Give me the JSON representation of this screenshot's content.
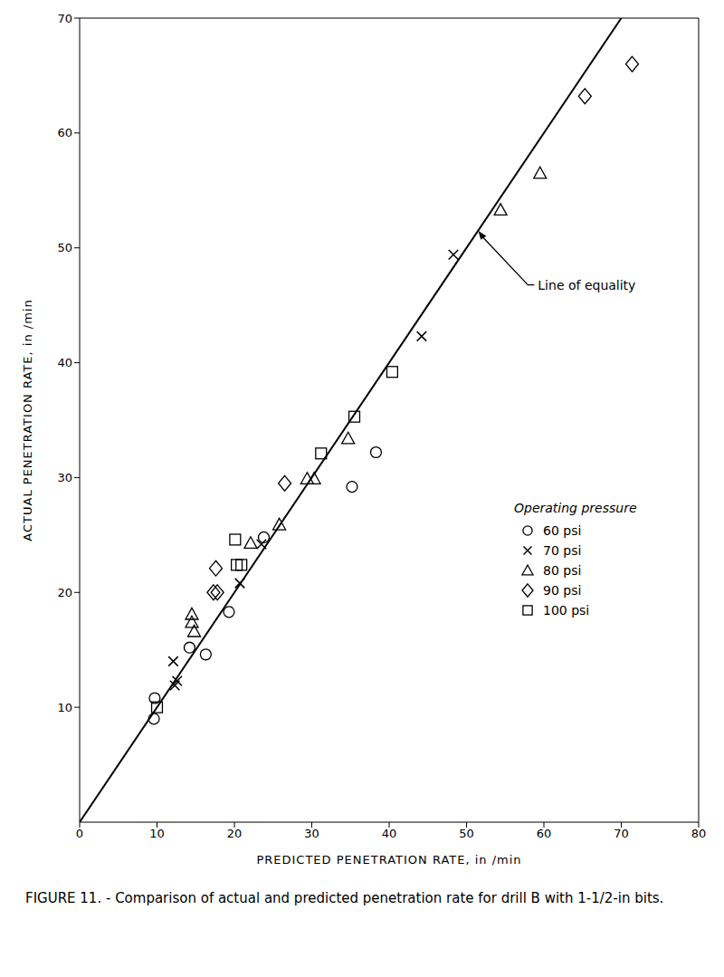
{
  "chart_data": {
    "type": "scatter",
    "title": "FIGURE 11. - Comparison of actual and predicted penetration rate for drill B with 1-1/2-in bits.",
    "x_label": "PREDICTED PENETRATION RATE, in /min",
    "y_label": "ACTUAL PENETRATION RATE, in /min",
    "xlim": [
      0,
      80
    ],
    "xticks": [
      0,
      10,
      20,
      30,
      40,
      50,
      60,
      70,
      80
    ],
    "ylim": [
      0,
      70
    ],
    "yticks": [
      10,
      20,
      30,
      40,
      50,
      60,
      70
    ],
    "grid": false,
    "legend": "right",
    "legend_title": "Operating pressure",
    "series": [
      {
        "name": "60 psi",
        "color": "#000000",
        "marker": "circle",
        "x": [
          9.7,
          9.6,
          14.2,
          16.3,
          19.3,
          23.8,
          35.2,
          38.3
        ],
        "values": [
          10.8,
          9.0,
          15.2,
          14.6,
          18.3,
          24.8,
          29.2,
          32.2
        ]
      },
      {
        "name": "70 psi",
        "color": "#000000",
        "marker": "x",
        "x": [
          12.1,
          12.3,
          12.6,
          20.7,
          23.5,
          44.2,
          48.3
        ],
        "values": [
          14.0,
          11.9,
          12.3,
          20.8,
          24.2,
          42.3,
          49.4
        ]
      },
      {
        "name": "80 psi",
        "color": "#000000",
        "marker": "triangle",
        "x": [
          14.5,
          14.5,
          14.8,
          22.1,
          25.8,
          29.4,
          30.3,
          34.7,
          54.4,
          59.5
        ],
        "values": [
          18.1,
          17.4,
          16.6,
          24.3,
          25.9,
          29.9,
          29.9,
          33.4,
          53.3,
          56.5
        ]
      },
      {
        "name": "90 psi",
        "color": "#000000",
        "marker": "diamond",
        "x": [
          17.3,
          17.6,
          17.8,
          26.5,
          65.3,
          71.4
        ],
        "values": [
          20.0,
          22.1,
          20.0,
          29.5,
          63.2,
          66.0
        ]
      },
      {
        "name": "100 psi",
        "color": "#000000",
        "marker": "square",
        "x": [
          10.0,
          20.1,
          20.3,
          20.9,
          31.2,
          35.5,
          40.4
        ],
        "values": [
          10.0,
          24.6,
          22.4,
          22.4,
          32.1,
          35.3,
          39.2
        ]
      },
      {
        "type": "line",
        "color": "#000000",
        "line_style": "solid",
        "x": [
          0,
          70
        ],
        "values": [
          0,
          70
        ]
      }
    ],
    "annotations": [
      {
        "text": "Line of equality",
        "x": 51.5,
        "y": 51.5
      }
    ]
  }
}
